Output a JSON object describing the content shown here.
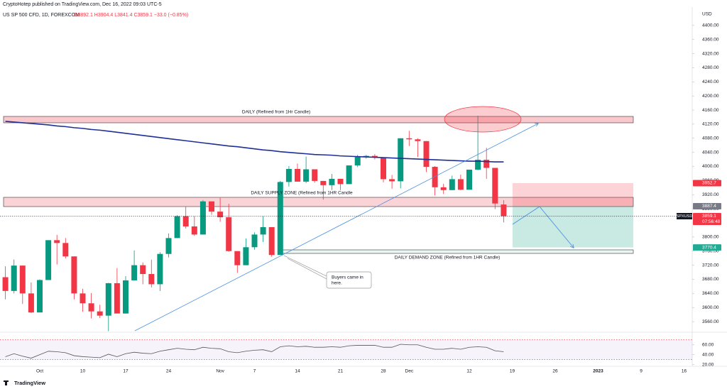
{
  "chart_data": {
    "type": "candlestick",
    "header": "CryptoHotep published on TradingView.com, Dec 16, 2022 09:03 UTC-5",
    "title": "US SP 500 CFD, 1D, FOREXCOM",
    "ohlc_text": "O3892.1 H3904.4 L3841.4 C3859.1 −33.0 (−0.85%)",
    "currency": "USD",
    "footer": "TradingView",
    "up_color": "#089981",
    "down_color": "#f23645",
    "categories": [
      null,
      null,
      null,
      null,
      "Oct",
      null,
      null,
      null,
      null,
      "10",
      null,
      null,
      null,
      null,
      "17",
      null,
      null,
      null,
      null,
      "24",
      null,
      null,
      null,
      null,
      null,
      "Nov",
      null,
      null,
      null,
      "7",
      null,
      null,
      null,
      null,
      "14",
      null,
      null,
      null,
      null,
      "21",
      null,
      null,
      null,
      null,
      "28",
      null,
      null,
      "Dec",
      null,
      null,
      null,
      null,
      null,
      null,
      "12",
      null,
      null,
      null,
      null,
      "19",
      null,
      null,
      null,
      null,
      "26",
      null,
      null,
      null,
      null,
      "2023",
      null,
      null,
      null,
      null,
      "9",
      null,
      null,
      null,
      null,
      "16"
    ],
    "open": [
      3686,
      3647,
      3719,
      3640,
      3586,
      3678,
      3791,
      3783,
      3745,
      3640,
      3612,
      3589,
      3577,
      3669,
      3583,
      3677,
      3720,
      3695,
      3666,
      3752,
      3797,
      3859,
      3830,
      3807,
      3901,
      3872,
      3856,
      3760,
      3720,
      3771,
      3807,
      3828,
      3749,
      3956,
      3993,
      3957,
      3992,
      3959,
      3947,
      3965,
      3950,
      4003,
      4027,
      4030,
      4026,
      3964,
      3958,
      4080,
      4077,
      4072,
      3999,
      3941,
      3933,
      3964,
      3934,
      3991,
      4019,
      3996,
      3892.1,
      null,
      null,
      null,
      null,
      null,
      null,
      null,
      null,
      null,
      null,
      null,
      null,
      null,
      null,
      null,
      null,
      null,
      null,
      null,
      null,
      null
    ],
    "high": [
      3717,
      3736,
      3719,
      3671,
      3680,
      3791,
      3806,
      3797,
      3745,
      3653,
      3641,
      3608,
      3670,
      3712,
      3689,
      3762,
      3728,
      3736,
      3757,
      3810,
      3862,
      3886,
      3859,
      3905,
      3901,
      3911,
      3894,
      3760,
      3796,
      3813,
      3859,
      3828,
      3959,
      4001,
      4008,
      4028,
      3992,
      3959,
      3979,
      3965,
      4003,
      4033,
      4033,
      4035,
      4026,
      3976,
      4080,
      4101,
      4080,
      4072,
      4001,
      3951,
      3974,
      3977,
      3991,
      4144,
      4053,
      3996,
      3904.4,
      null,
      null,
      null,
      null,
      null,
      null,
      null,
      null,
      null,
      null,
      null,
      null,
      null,
      null,
      null,
      null,
      null,
      null,
      null,
      null,
      null
    ],
    "low": [
      3623,
      3640,
      3610,
      3584,
      3586,
      3678,
      3722,
      3739,
      3623,
      3588,
      3569,
      3570,
      3533,
      3583,
      3583,
      3677,
      3666,
      3657,
      3647,
      3742,
      3797,
      3824,
      3803,
      3807,
      3863,
      3843,
      3758,
      3698,
      3720,
      3764,
      3786,
      3744,
      3749,
      3943,
      3957,
      3953,
      3954,
      3906,
      3933,
      3933,
      3950,
      3998,
      4022,
      4020,
      3955,
      3937,
      3938,
      4058,
      4027,
      3984,
      3918,
      3922,
      3933,
      3933,
      3934,
      3989,
      3965,
      3879,
      3841.4,
      null,
      null,
      null,
      null,
      null,
      null,
      null,
      null,
      null,
      null,
      null,
      null,
      null,
      null,
      null,
      null,
      null,
      null,
      null,
      null,
      null
    ],
    "close": [
      3647,
      3719,
      3640,
      3586,
      3678,
      3791,
      3783,
      3745,
      3640,
      3612,
      3589,
      3577,
      3669,
      3583,
      3677,
      3720,
      3695,
      3666,
      3752,
      3797,
      3859,
      3830,
      3807,
      3901,
      3872,
      3856,
      3760,
      3720,
      3771,
      3807,
      3828,
      3749,
      3956,
      3993,
      3957,
      3992,
      3959,
      3947,
      3965,
      3950,
      4003,
      4027,
      4030,
      4026,
      3964,
      3958,
      4080,
      4077,
      4072,
      3999,
      3941,
      3933,
      3964,
      3934,
      3991,
      4019,
      3996,
      3895,
      3859.1,
      null,
      null,
      null,
      null,
      null,
      null,
      null,
      null,
      null,
      null,
      null,
      null,
      null,
      null,
      null,
      null,
      null,
      null,
      null,
      null,
      null
    ],
    "ma": {
      "color": "#1e2f97",
      "values": [
        4128,
        4126,
        4124,
        4122,
        4120,
        4118,
        4115,
        4113,
        4110,
        4108,
        4105,
        4103,
        4100,
        4097,
        4094,
        4091,
        4088,
        4085,
        4082,
        4079,
        4076,
        4073,
        4070,
        4067,
        4064,
        4061,
        4058,
        4056,
        4053,
        4050,
        4047,
        4045,
        4042,
        4040,
        4038,
        4036,
        4034,
        4033,
        4032,
        4030,
        4029,
        4028,
        4027,
        4026,
        4025,
        4024,
        4023,
        4022,
        4021,
        4020,
        4019,
        4018,
        4017,
        4016,
        4015,
        4015,
        4014,
        4013,
        4013,
        null,
        null,
        null,
        null,
        null,
        null,
        null,
        null,
        null,
        null,
        null,
        null,
        null,
        null,
        null,
        null,
        null,
        null,
        null,
        null,
        null
      ]
    },
    "ylim": [
      3532,
      4452
    ],
    "yticks": [
      {
        "value": 3560,
        "label": "3560.00"
      },
      {
        "value": 3600,
        "label": "3600.00"
      },
      {
        "value": 3640,
        "label": "3640.00"
      },
      {
        "value": 3680,
        "label": "3680.00"
      },
      {
        "value": 3720,
        "label": "3720.00"
      },
      {
        "value": 3760,
        "label": "3760.00"
      },
      {
        "value": 3800,
        "label": "3800.00"
      },
      {
        "value": 3840,
        "label": "3840.00"
      },
      {
        "value": 3880,
        "label": "3880.00"
      },
      {
        "value": 3920,
        "label": "3920.00"
      },
      {
        "value": 3960,
        "label": "3960.00"
      },
      {
        "value": 4000,
        "label": "4000.00"
      },
      {
        "value": 4040,
        "label": "4040.00"
      },
      {
        "value": 4080,
        "label": "4080.00"
      },
      {
        "value": 4120,
        "label": "4120.00"
      },
      {
        "value": 4160,
        "label": "4160.00"
      },
      {
        "value": 4200,
        "label": "4200.00"
      },
      {
        "value": 4240,
        "label": "4240.00"
      },
      {
        "value": 4280,
        "label": "4280.00"
      },
      {
        "value": 4320,
        "label": "4320.00"
      },
      {
        "value": 4360,
        "label": "4360.00"
      },
      {
        "value": 4400,
        "label": "4400.00"
      }
    ],
    "grid": false,
    "price_labels": [
      3952.7,
      3887.4,
      3770.4
    ],
    "current": {
      "symbol": "SPXUSD",
      "price": 3859.1,
      "countdown": "07:56:48"
    },
    "rsi": {
      "color": "#555555",
      "ylim": [
        18,
        84
      ],
      "levels": [
        70,
        30
      ],
      "yticks": [
        {
          "value": 20,
          "label": "20.00"
        },
        {
          "value": 40,
          "label": "40.00"
        },
        {
          "value": 60,
          "label": "60.00"
        }
      ],
      "values": [
        36,
        42,
        37,
        33,
        40,
        47,
        46,
        44,
        38,
        36,
        35,
        34,
        41,
        36,
        42,
        45,
        43,
        42,
        47,
        50,
        53,
        51,
        50,
        55,
        53,
        52,
        46,
        44,
        47,
        49,
        50,
        46,
        56,
        58,
        56,
        57,
        55,
        55,
        56,
        55,
        58,
        59,
        59,
        59,
        55,
        55,
        61,
        60,
        60,
        55,
        51,
        51,
        53,
        51,
        55,
        56,
        55,
        48,
        46,
        null,
        null,
        null,
        null,
        null,
        null,
        null,
        null,
        null,
        null,
        null,
        null,
        null,
        null,
        null,
        null,
        null,
        null,
        null,
        null,
        null
      ]
    },
    "annotations": {
      "daily_zone": "DAILY (Refined from 1Hr Candle)",
      "supply_zone": "DAILY SUPPLY ZONE (Refined from 1HR Candle",
      "demand_zone": "DAILY DEMAND ZONE (Refined from 1HR Candle)",
      "callout": [
        "Buyers came in",
        "here."
      ]
    }
  }
}
